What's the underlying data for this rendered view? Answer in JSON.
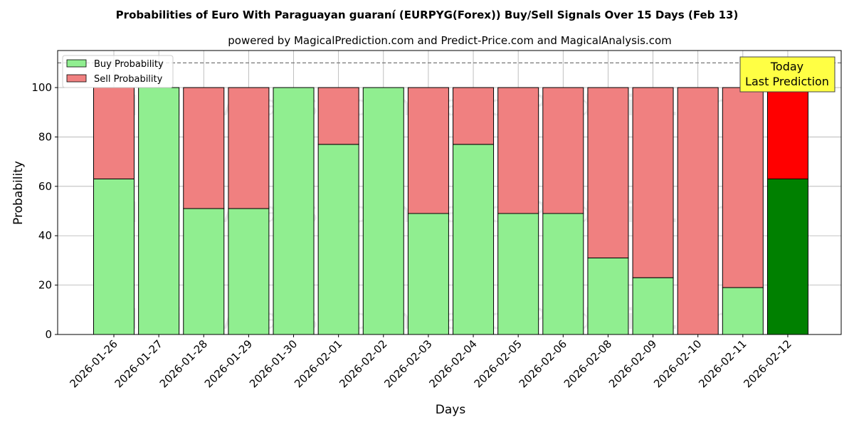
{
  "chart_data": {
    "type": "bar",
    "stacked": true,
    "title": "Probabilities of Euro With Paraguayan guaraní (EURPYG(Forex)) Buy/Sell Signals Over 15 Days (Feb 13)",
    "subtitle": "powered by MagicalPrediction.com and Predict-Price.com and MagicalAnalysis.com",
    "xlabel": "Days",
    "ylabel": "Probability",
    "ylim": [
      0,
      115
    ],
    "yticks": [
      0,
      20,
      40,
      60,
      80,
      100
    ],
    "grid": true,
    "legend_position": "top-left",
    "reference_line": 110,
    "categories": [
      "2026-01-26",
      "2026-01-27",
      "2026-01-28",
      "2026-01-29",
      "2026-01-30",
      "2026-02-01",
      "2026-02-02",
      "2026-02-03",
      "2026-02-04",
      "2026-02-05",
      "2026-02-06",
      "2026-02-08",
      "2026-02-09",
      "2026-02-10",
      "2026-02-11",
      "2026-02-12"
    ],
    "series": [
      {
        "name": "Buy Probability",
        "color": "#90ee90",
        "values": [
          63,
          100,
          51,
          51,
          100,
          77,
          100,
          49,
          77,
          49,
          49,
          31,
          23,
          0,
          19,
          63
        ]
      },
      {
        "name": "Sell Probability",
        "color": "#f08080",
        "values": [
          37,
          0,
          49,
          49,
          0,
          23,
          0,
          51,
          23,
          51,
          51,
          69,
          77,
          100,
          81,
          37
        ]
      }
    ],
    "highlight": {
      "buy_color": "#008000",
      "sell_color": "#ff0000"
    },
    "annotation": {
      "line1": "Today",
      "line2": "Last Prediction",
      "color": "#ffff44"
    },
    "watermark": "MagicalAnalysis.com   MagicalPrediction.com"
  }
}
